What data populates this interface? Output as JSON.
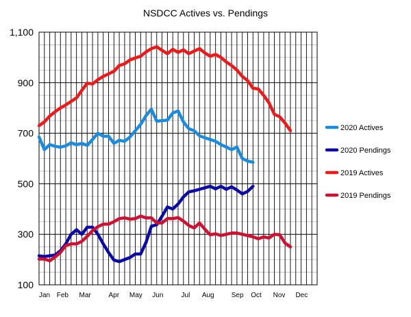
{
  "chart_data": {
    "type": "line",
    "title": "NSDCC Actives vs. Pendings",
    "xlabel": "",
    "ylabel": "",
    "ylim": [
      100,
      1100
    ],
    "y_ticks": [
      "100",
      "300",
      "500",
      "700",
      "900",
      "1,100"
    ],
    "y_tick_values": [
      100,
      300,
      500,
      700,
      900,
      1100
    ],
    "x_range": [
      0,
      52
    ],
    "x_ticks": [
      {
        "label": "Jan",
        "week": 0
      },
      {
        "label": "Feb",
        "week": 4.4
      },
      {
        "label": "Mar",
        "week": 8.6
      },
      {
        "label": "Apr",
        "week": 14
      },
      {
        "label": "May",
        "week": 18.1
      },
      {
        "label": "Jun",
        "week": 22.2
      },
      {
        "label": "Jul",
        "week": 27.4
      },
      {
        "label": "Aug",
        "week": 31.6
      },
      {
        "label": "Sep",
        "week": 37.1
      },
      {
        "label": "Oct",
        "week": 40.6
      },
      {
        "label": "Nov",
        "week": 44.9
      },
      {
        "label": "Dec",
        "week": 49.1
      }
    ],
    "grid": true,
    "legend_position": "right",
    "series": [
      {
        "name": "2020 Actives",
        "color": "#1a8ce0",
        "x": [
          0,
          1,
          2,
          3,
          4,
          5,
          6,
          7,
          8,
          9,
          10,
          11,
          12,
          13,
          14,
          15,
          16,
          17,
          18,
          19,
          20,
          21,
          22,
          23,
          24,
          25,
          26,
          27,
          28,
          29,
          30,
          31,
          32,
          33,
          34,
          35,
          36,
          37,
          38,
          39,
          40,
          41,
          42
        ],
        "values": [
          685,
          635,
          655,
          648,
          645,
          650,
          662,
          655,
          660,
          652,
          675,
          700,
          688,
          688,
          660,
          672,
          668,
          685,
          710,
          735,
          770,
          795,
          748,
          750,
          752,
          780,
          788,
          745,
          718,
          710,
          690,
          682,
          675,
          668,
          655,
          645,
          635,
          645,
          600,
          590,
          585,
          null,
          null
        ]
      },
      {
        "name": "2020 Pendings",
        "color": "#0a0aa8",
        "x": [
          0,
          1,
          2,
          3,
          4,
          5,
          6,
          7,
          8,
          9,
          10,
          11,
          12,
          13,
          14,
          15,
          16,
          17,
          18,
          19,
          20,
          21,
          22,
          23,
          24,
          25,
          26,
          27,
          28,
          29,
          30,
          31,
          32,
          33,
          34,
          35,
          36,
          37,
          38,
          39,
          40,
          41,
          42
        ],
        "values": [
          215,
          212,
          215,
          218,
          235,
          262,
          300,
          318,
          300,
          328,
          328,
          300,
          262,
          228,
          198,
          192,
          200,
          208,
          222,
          222,
          268,
          332,
          338,
          372,
          408,
          400,
          420,
          448,
          468,
          472,
          478,
          484,
          490,
          480,
          490,
          478,
          488,
          475,
          460,
          470,
          490,
          null,
          null
        ]
      },
      {
        "name": "2019 Actives",
        "color": "#f01818",
        "x": [
          0,
          1,
          2,
          3,
          4,
          5,
          6,
          7,
          8,
          9,
          10,
          11,
          12,
          13,
          14,
          15,
          16,
          17,
          18,
          19,
          20,
          21,
          22,
          23,
          24,
          25,
          26,
          27,
          28,
          29,
          30,
          31,
          32,
          33,
          34,
          35,
          36,
          37,
          38,
          39,
          40,
          41,
          42,
          43,
          44,
          45,
          46,
          47,
          48,
          49,
          50,
          51,
          52
        ],
        "values": [
          730,
          745,
          768,
          785,
          800,
          812,
          826,
          840,
          870,
          898,
          895,
          912,
          925,
          935,
          945,
          968,
          975,
          990,
          998,
          1005,
          1022,
          1035,
          1042,
          1028,
          1015,
          1032,
          1020,
          1030,
          1015,
          1025,
          1035,
          1018,
          1005,
          1012,
          1000,
          982,
          968,
          950,
          925,
          908,
          878,
          875,
          850,
          820,
          775,
          765,
          740,
          710,
          null,
          null,
          null,
          null,
          null
        ]
      },
      {
        "name": "2019 Pendings",
        "color": "#d01030",
        "x": [
          0,
          1,
          2,
          3,
          4,
          5,
          6,
          7,
          8,
          9,
          10,
          11,
          12,
          13,
          14,
          15,
          16,
          17,
          18,
          19,
          20,
          21,
          22,
          23,
          24,
          25,
          26,
          27,
          28,
          29,
          30,
          31,
          32,
          33,
          34,
          35,
          36,
          37,
          38,
          39,
          40,
          41,
          42,
          43,
          44,
          45,
          46,
          47,
          48,
          49,
          50,
          51,
          52
        ],
        "values": [
          202,
          202,
          195,
          210,
          228,
          255,
          262,
          262,
          272,
          292,
          315,
          330,
          340,
          340,
          350,
          362,
          365,
          360,
          362,
          372,
          365,
          365,
          345,
          345,
          362,
          362,
          366,
          352,
          335,
          325,
          345,
          320,
          298,
          302,
          295,
          300,
          305,
          305,
          300,
          295,
          290,
          282,
          290,
          285,
          300,
          298,
          265,
          250,
          null,
          null,
          null,
          null,
          null
        ]
      }
    ]
  }
}
